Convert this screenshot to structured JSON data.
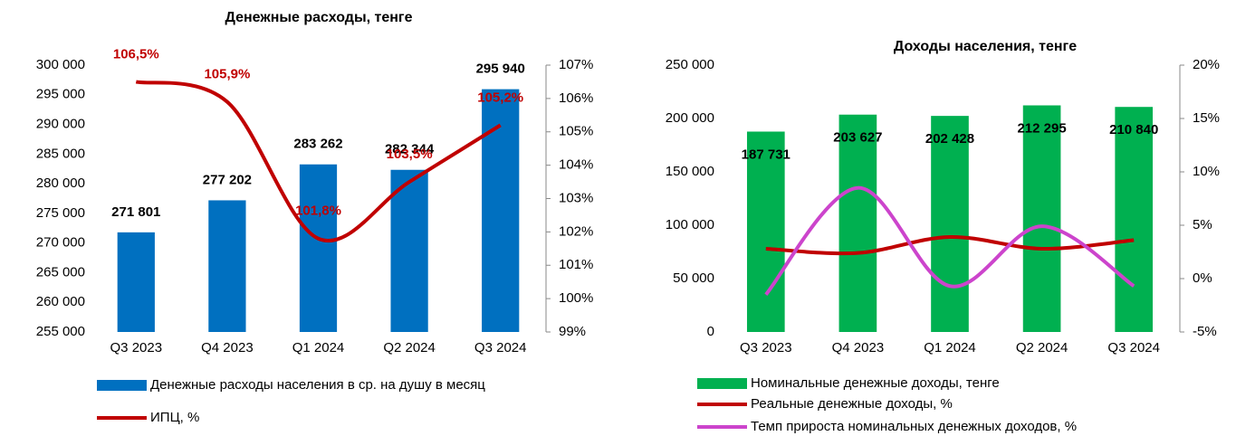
{
  "chart_data": [
    {
      "type": "bar",
      "title": "Денежные расходы, тенге",
      "categories": [
        "Q3 2023",
        "Q4 2023",
        "Q1 2024",
        "Q2 2024",
        "Q3 2024"
      ],
      "series": [
        {
          "name": "Денежные расходы населения в ср. на душу в месяц",
          "color": "#0070c0",
          "kind": "bar",
          "values": [
            271801,
            277202,
            283262,
            282344,
            295940
          ],
          "value_labels": [
            "271 801",
            "277 202",
            "283 262",
            "282 344",
            "295 940"
          ]
        },
        {
          "name": "ИПЦ, %",
          "color": "#c00000",
          "kind": "line",
          "axis": "y2",
          "values": [
            106.5,
            105.9,
            101.8,
            103.5,
            105.2
          ],
          "value_labels": [
            "106,5%",
            "105,9%",
            "101,8%",
            "103,5%",
            "105,2%"
          ]
        }
      ],
      "ylim": [
        255000,
        300000
      ],
      "yticks": [
        {
          "value": 255000,
          "label": "255 000"
        },
        {
          "value": 260000,
          "label": "260 000"
        },
        {
          "value": 265000,
          "label": "265 000"
        },
        {
          "value": 270000,
          "label": "270 000"
        },
        {
          "value": 275000,
          "label": "275 000"
        },
        {
          "value": 280000,
          "label": "280 000"
        },
        {
          "value": 285000,
          "label": "285 000"
        },
        {
          "value": 290000,
          "label": "290 000"
        },
        {
          "value": 295000,
          "label": "295 000"
        },
        {
          "value": 300000,
          "label": "300 000"
        }
      ],
      "y2lim": [
        99,
        107
      ],
      "y2ticks": [
        {
          "value": 99,
          "label": "99%"
        },
        {
          "value": 100,
          "label": "100%"
        },
        {
          "value": 101,
          "label": "101%"
        },
        {
          "value": 102,
          "label": "102%"
        },
        {
          "value": 103,
          "label": "103%"
        },
        {
          "value": 104,
          "label": "104%"
        },
        {
          "value": 105,
          "label": "105%"
        },
        {
          "value": 106,
          "label": "106%"
        },
        {
          "value": 107,
          "label": "107%"
        }
      ]
    },
    {
      "type": "bar",
      "title": "Доходы населения, тенге",
      "categories": [
        "Q3 2023",
        "Q4 2023",
        "Q1 2024",
        "Q2 2024",
        "Q3 2024"
      ],
      "series": [
        {
          "name": "Номинальные денежные доходы, тенге",
          "color": "#00b050",
          "kind": "bar",
          "values": [
            187731,
            203627,
            202428,
            212295,
            210840
          ],
          "value_labels": [
            "187 731",
            "203 627",
            "202 428",
            "212 295",
            "210 840"
          ]
        },
        {
          "name": "Реальные денежные доходы, %",
          "color": "#c00000",
          "kind": "line",
          "axis": "y2",
          "values": [
            2.8,
            2.4,
            3.9,
            2.8,
            3.6
          ]
        },
        {
          "name": "Темп прироста номинальных денежных доходов, %",
          "color": "#cc44cc",
          "kind": "line",
          "axis": "y2",
          "values": [
            -1.5,
            8.5,
            -0.7,
            4.9,
            -0.7
          ]
        }
      ],
      "ylim": [
        0,
        250000
      ],
      "yticks": [
        0,
        {
          "value": 50000,
          "label": "50 000"
        },
        {
          "value": 100000,
          "label": "100 000"
        },
        {
          "value": 150000,
          "label": "150 000"
        },
        {
          "value": 200000,
          "label": "200 000"
        },
        {
          "value": 250000,
          "label": "250 000"
        }
      ],
      "y2lim": [
        -5,
        20
      ],
      "y2ticks": [
        {
          "value": -5,
          "label": "-5%"
        },
        {
          "value": 0,
          "label": "0%"
        },
        {
          "value": 5,
          "label": "5%"
        },
        {
          "value": 10,
          "label": "10%"
        },
        {
          "value": 15,
          "label": "15%"
        },
        {
          "value": 20,
          "label": "20%"
        }
      ]
    }
  ]
}
